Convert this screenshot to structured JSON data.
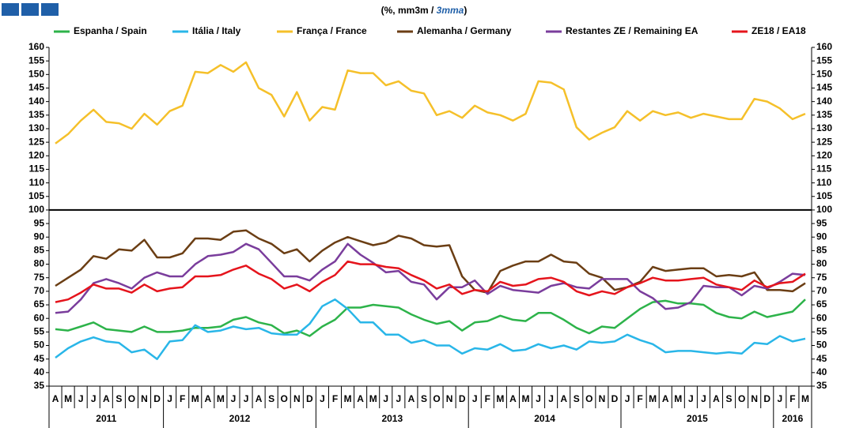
{
  "chart_data": {
    "type": "line",
    "title": "(%, mm3m / ",
    "title_em": "3mma",
    "title_end": ")",
    "categories": [
      "A",
      "M",
      "J",
      "J",
      "A",
      "S",
      "O",
      "N",
      "D",
      "J",
      "F",
      "M",
      "A",
      "M",
      "J",
      "J",
      "A",
      "S",
      "O",
      "N",
      "D",
      "J",
      "F",
      "M",
      "A",
      "M",
      "J",
      "J",
      "A",
      "S",
      "O",
      "N",
      "D",
      "J",
      "F",
      "M",
      "A",
      "M",
      "J",
      "J",
      "A",
      "S",
      "O",
      "N",
      "D",
      "J",
      "F",
      "M",
      "A",
      "M",
      "J",
      "J",
      "A",
      "S",
      "O",
      "N",
      "D",
      "J",
      "F",
      "M"
    ],
    "years": [
      "2011",
      "2012",
      "2013",
      "2014",
      "2015",
      "2016"
    ],
    "ylim": [
      35,
      160
    ],
    "yticks": [
      35,
      40,
      45,
      50,
      55,
      60,
      65,
      70,
      75,
      80,
      85,
      90,
      95,
      100,
      105,
      110,
      115,
      120,
      125,
      130,
      135,
      140,
      145,
      150,
      155,
      160
    ],
    "hline": 100,
    "series": [
      {
        "name": "Espanha / Spain",
        "color": "#2db34a",
        "values": [
          56,
          55.5,
          57,
          58.5,
          56,
          55.5,
          55,
          57,
          55,
          55,
          55.5,
          56.5,
          56.5,
          57,
          59.5,
          60.5,
          58.5,
          57.5,
          54.5,
          55.5,
          53.5,
          57,
          59.5,
          64,
          64,
          65,
          64.5,
          64,
          61.5,
          59.5,
          58,
          59,
          55.5,
          58.5,
          59,
          61,
          59.5,
          59,
          62,
          62,
          59.5,
          56.5,
          54.5,
          57,
          56.5,
          60,
          63.5,
          66,
          66.5,
          65.5,
          65.5,
          65,
          62,
          60.5,
          60,
          62.5,
          60.5,
          61.5,
          62.5,
          67
        ]
      },
      {
        "name": "Itália / Italy",
        "color": "#29b6e8",
        "values": [
          45.5,
          49,
          51.5,
          53,
          51.5,
          51,
          47.5,
          48.5,
          45,
          51.5,
          52,
          57.5,
          55,
          55.5,
          57,
          56,
          56.5,
          54.5,
          54,
          54,
          58,
          64.5,
          67,
          63.5,
          58.5,
          58.5,
          54,
          54,
          51,
          52,
          50,
          50,
          47,
          49,
          48.5,
          50.5,
          48,
          48.5,
          50.5,
          49,
          50,
          48.5,
          51.5,
          51,
          51.5,
          54,
          52,
          50.5,
          47.5,
          48,
          48,
          47.5,
          47,
          47.5,
          47,
          51,
          50.5,
          53.5,
          51.5,
          52.5
        ]
      },
      {
        "name": "França / France",
        "color": "#f5c02a",
        "values": [
          124.5,
          128,
          133,
          137,
          132.5,
          132,
          130,
          135.5,
          131.5,
          136.5,
          138.5,
          151,
          150.5,
          153.5,
          151,
          154.5,
          145,
          142.5,
          134.5,
          143.5,
          133,
          138,
          137,
          151.5,
          150.5,
          150.5,
          146,
          147.5,
          144,
          143,
          135,
          136.5,
          134,
          138.5,
          136,
          135,
          133,
          135.5,
          147.5,
          147,
          144.5,
          130.5,
          126,
          128.5,
          130.5,
          136.5,
          133,
          136.5,
          135,
          136,
          134,
          135.5,
          134.5,
          133.5,
          133.5,
          141,
          140,
          137.5,
          133.5,
          135.5
        ]
      },
      {
        "name": "Alemanha / Germany",
        "color": "#6b3e14",
        "values": [
          72,
          75,
          78,
          83,
          82,
          85.5,
          85,
          89,
          82.5,
          82.5,
          84,
          89.5,
          89.5,
          89,
          92,
          92.5,
          89.5,
          87.5,
          84,
          85.5,
          81,
          85,
          88,
          90,
          88.5,
          87,
          88,
          90.5,
          89.5,
          87,
          86.5,
          87,
          75.5,
          70.5,
          69.5,
          77.5,
          79.5,
          81,
          81,
          83.5,
          81,
          80.5,
          76.5,
          75,
          70.5,
          71.5,
          73.5,
          79,
          77.5,
          78,
          78.5,
          78.5,
          75.5,
          76,
          75.5,
          77,
          70.5,
          70.5,
          70,
          73
        ]
      },
      {
        "name": "Restantes ZE / Remaining EA",
        "color": "#7a3d9c",
        "values": [
          62,
          62.5,
          67,
          73,
          74.5,
          73,
          71,
          75,
          77,
          75.5,
          75.5,
          80,
          83,
          83.5,
          84.5,
          87.5,
          85.5,
          80.5,
          75.5,
          75.5,
          74,
          78,
          81,
          87.5,
          83.5,
          80.5,
          77,
          77.5,
          73.5,
          72.5,
          67,
          71.5,
          71.5,
          74,
          69,
          72,
          70.5,
          70,
          69.5,
          72,
          73,
          71.5,
          71,
          74.5,
          74.5,
          74.5,
          70,
          67.5,
          63.5,
          64,
          66,
          72,
          71.5,
          71.5,
          68.5,
          72,
          71,
          73.5,
          76.5,
          76
        ]
      },
      {
        "name": "ZE18 / EA18",
        "color": "#e5141c",
        "values": [
          66,
          67,
          69.5,
          72.5,
          71,
          71,
          69.5,
          72.5,
          70,
          71,
          71.5,
          75.5,
          75.5,
          76,
          78,
          79.5,
          76.5,
          74.5,
          71,
          72.5,
          70,
          73.5,
          76,
          81,
          80,
          80,
          79,
          78.5,
          76,
          74,
          71,
          72.5,
          69,
          70.5,
          70,
          73.5,
          72,
          72.5,
          74.5,
          75,
          73.5,
          70,
          68.5,
          70,
          69,
          71.5,
          73,
          75,
          74,
          74,
          74.5,
          75,
          72.5,
          71.5,
          70.5,
          74,
          71.5,
          73,
          73.5,
          76.5
        ]
      }
    ]
  }
}
